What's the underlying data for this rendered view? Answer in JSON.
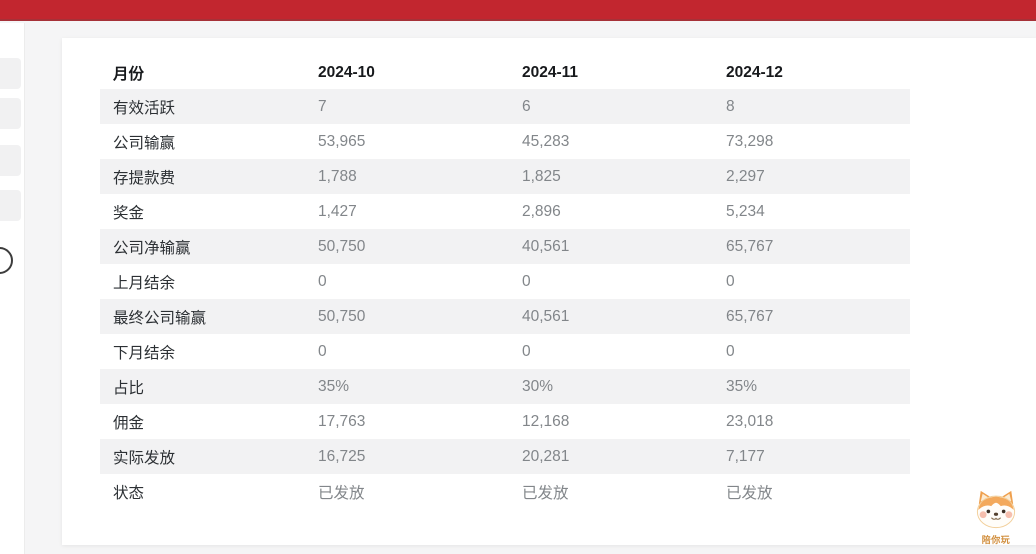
{
  "page": {
    "topbar_color": "#c2262f",
    "background": "#f5f5f6",
    "card_color": "#ffffff",
    "stripe_color": "#f2f2f3",
    "label_color": "#2c3034",
    "value_color": "#82868a"
  },
  "table": {
    "header": [
      "月份",
      "2024-10",
      "2024-11",
      "2024-12"
    ],
    "rows": [
      {
        "label": "有效活跃",
        "values": [
          "7",
          "6",
          "8"
        ]
      },
      {
        "label": "公司输赢",
        "values": [
          "53,965",
          "45,283",
          "73,298"
        ]
      },
      {
        "label": "存提款费",
        "values": [
          "1,788",
          "1,825",
          "2,297"
        ]
      },
      {
        "label": "奖金",
        "values": [
          "1,427",
          "2,896",
          "5,234"
        ]
      },
      {
        "label": "公司净输赢",
        "values": [
          "50,750",
          "40,561",
          "65,767"
        ]
      },
      {
        "label": "上月结余",
        "values": [
          "0",
          "0",
          "0"
        ]
      },
      {
        "label": "最终公司输赢",
        "values": [
          "50,750",
          "40,561",
          "65,767"
        ]
      },
      {
        "label": "下月结余",
        "values": [
          "0",
          "0",
          "0"
        ]
      },
      {
        "label": "占比",
        "values": [
          "35%",
          "30%",
          "35%"
        ]
      },
      {
        "label": "佣金",
        "values": [
          "17,763",
          "12,168",
          "23,018"
        ]
      },
      {
        "label": "实际发放",
        "values": [
          "16,725",
          "20,281",
          "7,177"
        ]
      },
      {
        "label": "状态",
        "values": [
          "已发放",
          "已发放",
          "已发放"
        ]
      }
    ]
  },
  "mascot": {
    "label": "陪你玩"
  }
}
